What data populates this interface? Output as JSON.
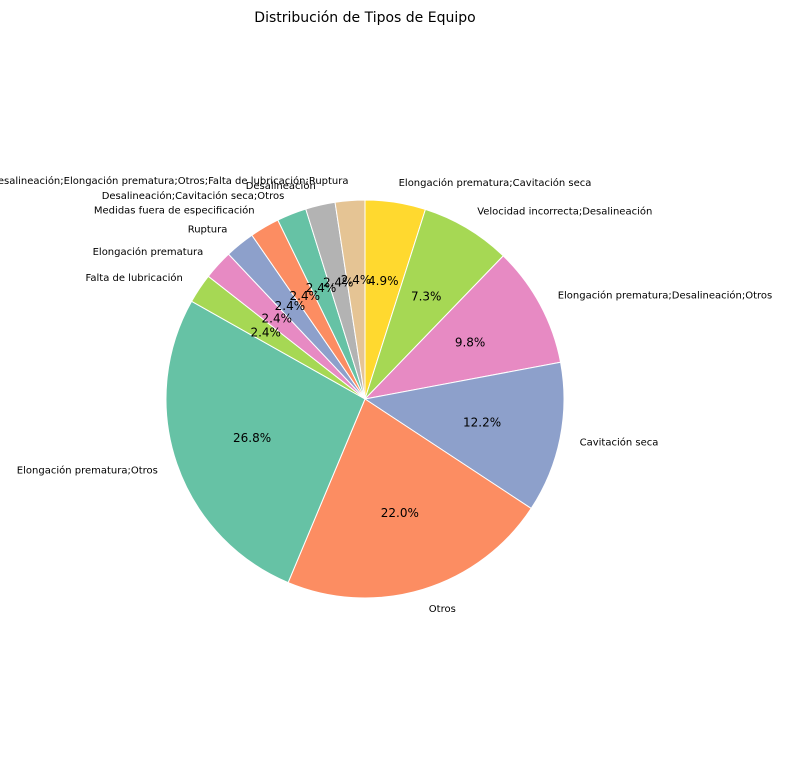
{
  "chart_data": {
    "type": "pie",
    "title": "Distribución de Tipos de Equipo",
    "start_angle_deg": 90,
    "direction": "clockwise",
    "categories": [
      "Elongación prematura;Cavitación seca",
      "Velocidad incorrecta;Desalineación",
      "Elongación prematura;Desalineación;Otros",
      "Cavitación seca",
      "Otros",
      "Elongación prematura;Otros",
      "Falta de lubricación",
      "Elongación prematura",
      "Ruptura",
      "Medidas fuera de especificación",
      "Desalineación;Cavitación seca;Otros",
      "Desalineación",
      "Desalineación;Elongación prematura;Otros;Falta de lubricación;Ruptura"
    ],
    "values": [
      4.9,
      7.3,
      9.8,
      12.2,
      22.0,
      26.8,
      2.4,
      2.4,
      2.4,
      2.4,
      2.4,
      2.4,
      2.4
    ],
    "value_labels": [
      "4.9%",
      "7.3%",
      "9.8%",
      "12.2%",
      "22.0%",
      "26.8%",
      "2.4%",
      "2.4%",
      "2.4%",
      "2.4%",
      "2.4%",
      "2.4%",
      "2.4%"
    ],
    "colors": [
      "#ffd92f",
      "#a6d854",
      "#e78ac3",
      "#8da0cb",
      "#fc8d62",
      "#66c2a5",
      "#a6d854",
      "#e78ac3",
      "#8da0cb",
      "#fc8d62",
      "#66c2a5",
      "#b3b3b3",
      "#e5c494"
    ]
  }
}
